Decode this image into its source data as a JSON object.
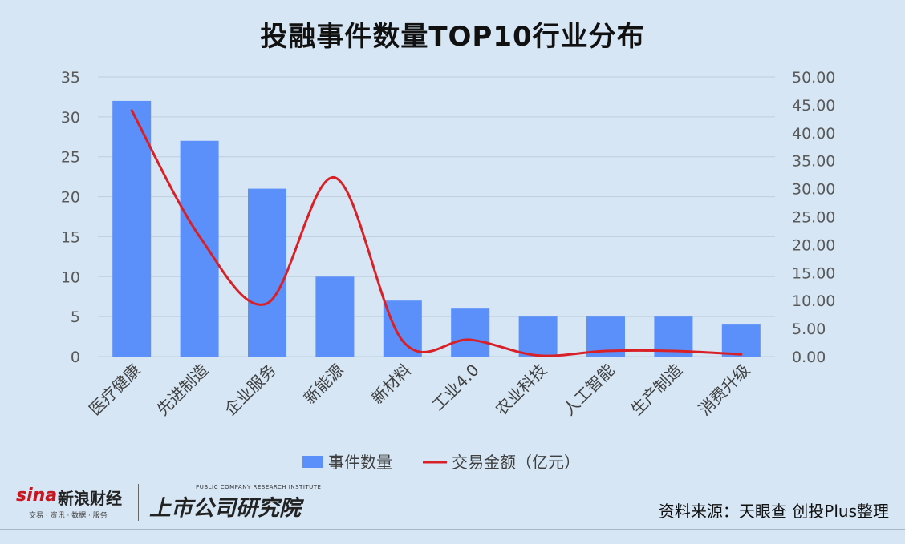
{
  "chart_data": {
    "type": "bar",
    "title": "投融事件数量TOP10行业分布",
    "categories": [
      "医疗健康",
      "先进制造",
      "企业服务",
      "新能源",
      "新材料",
      "工业4.0",
      "农业科技",
      "人工智能",
      "生产制造",
      "消费升级"
    ],
    "series": [
      {
        "name": "事件数量",
        "type": "bar",
        "axis": "left",
        "color": "#5b8ff9",
        "values": [
          32,
          27,
          21,
          10,
          7,
          6,
          5,
          5,
          5,
          4
        ]
      },
      {
        "name": "交易金额（亿元）",
        "type": "line",
        "axis": "right",
        "color": "#d92027",
        "values": [
          44.0,
          21.5,
          9.5,
          32.0,
          2.8,
          3.0,
          0.2,
          1.0,
          1.0,
          0.4
        ]
      }
    ],
    "ylim_left": [
      0,
      35
    ],
    "yticks_left": [
      "0",
      "5",
      "10",
      "15",
      "20",
      "25",
      "30",
      "35"
    ],
    "ylim_right": [
      0,
      50
    ],
    "yticks_right": [
      "0.00",
      "5.00",
      "10.00",
      "15.00",
      "20.00",
      "25.00",
      "30.00",
      "35.00",
      "40.00",
      "45.00",
      "50.00"
    ],
    "grid": true,
    "legend_position": "bottom"
  },
  "footer": {
    "brand_sina": "sina",
    "brand_sina_cn": "新浪财经",
    "brand_sina_sub": "交易 · 资讯 · 数据 · 服务",
    "brand_research": "上市公司研究院",
    "brand_research_en": "PUBLIC COMPANY RESEARCH INSTITUTE",
    "source": "资料来源：天眼查 创投Plus整理"
  }
}
